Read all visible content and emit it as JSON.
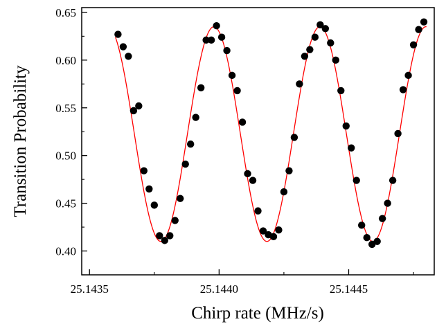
{
  "chart_data": {
    "type": "scatter",
    "xlabel": "Chirp rate (MHz/s)",
    "ylabel": "Transition Probability",
    "xlim": [
      25.14347,
      25.14483
    ],
    "ylim": [
      0.375,
      0.655
    ],
    "x_ticks": [
      25.1435,
      25.144,
      25.1445
    ],
    "x_tick_labels": [
      "25.1435",
      "25.1440",
      "25.1445"
    ],
    "y_ticks": [
      0.4,
      0.45,
      0.5,
      0.55,
      0.6,
      0.65
    ],
    "y_tick_labels": [
      "0.40",
      "0.45",
      "0.50",
      "0.55",
      "0.60",
      "0.65"
    ],
    "grid": false,
    "legend": "none",
    "colors": {
      "points": "#000000",
      "fit": "#ff0000"
    },
    "series": [
      {
        "kind": "points",
        "x": [
          25.14361,
          25.14363,
          25.14365,
          25.14367,
          25.14369,
          25.14371,
          25.14373,
          25.14375,
          25.14377,
          25.14379,
          25.14381,
          25.14383,
          25.14385,
          25.14387,
          25.14389,
          25.14391,
          25.14393,
          25.14395,
          25.14397,
          25.14399,
          25.14401,
          25.14403,
          25.14405,
          25.14407,
          25.14409,
          25.14411,
          25.14413,
          25.14415,
          25.14417,
          25.14419,
          25.14421,
          25.14423,
          25.14425,
          25.14427,
          25.14429,
          25.14431,
          25.14433,
          25.14435,
          25.14437,
          25.14439,
          25.14441,
          25.14443,
          25.14445,
          25.14447,
          25.14449,
          25.14451,
          25.14453,
          25.14455,
          25.14457,
          25.14459,
          25.14461,
          25.14463,
          25.14465,
          25.14467,
          25.14469,
          25.14471,
          25.14473,
          25.14475,
          25.14477,
          25.14479
        ],
        "y": [
          0.627,
          0.614,
          0.604,
          0.547,
          0.552,
          0.484,
          0.465,
          0.448,
          0.416,
          0.411,
          0.416,
          0.432,
          0.455,
          0.491,
          0.512,
          0.54,
          0.571,
          0.621,
          0.621,
          0.636,
          0.624,
          0.61,
          0.584,
          0.568,
          0.535,
          0.481,
          0.474,
          0.442,
          0.421,
          0.417,
          0.415,
          0.422,
          0.462,
          0.484,
          0.519,
          0.575,
          0.604,
          0.611,
          0.624,
          0.637,
          0.633,
          0.618,
          0.6,
          0.568,
          0.531,
          0.508,
          0.474,
          0.427,
          0.414,
          0.407,
          0.41,
          0.434,
          0.45,
          0.474,
          0.523,
          0.569,
          0.584,
          0.616,
          0.632,
          0.64
        ]
      },
      {
        "kind": "fit",
        "mean": 0.5225,
        "amplitude": 0.1125,
        "period": 0.000409,
        "peak_x": 25.14398
      }
    ]
  }
}
